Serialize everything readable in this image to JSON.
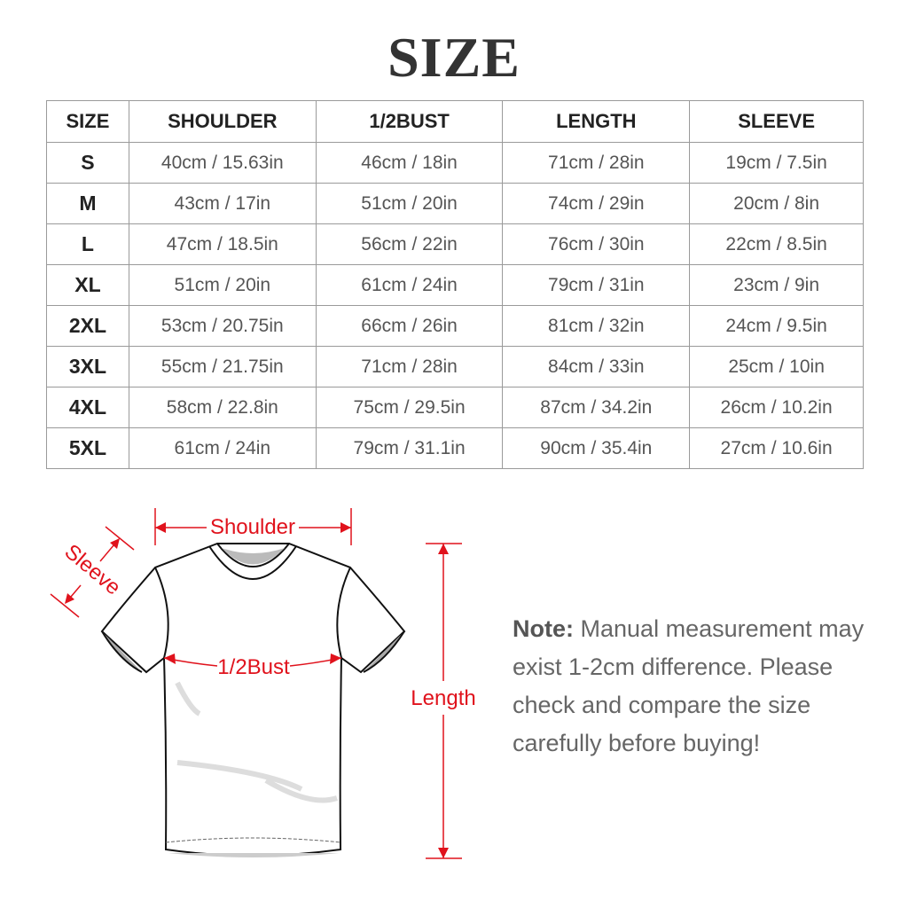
{
  "title": "SIZE",
  "table": {
    "headers": [
      "SIZE",
      "SHOULDER",
      "1/2BUST",
      "LENGTH",
      "SLEEVE"
    ],
    "rows": [
      [
        "S",
        "40cm / 15.63in",
        "46cm / 18in",
        "71cm / 28in",
        "19cm / 7.5in"
      ],
      [
        "M",
        "43cm / 17in",
        "51cm / 20in",
        "74cm / 29in",
        "20cm / 8in"
      ],
      [
        "L",
        "47cm / 18.5in",
        "56cm / 22in",
        "76cm / 30in",
        "22cm / 8.5in"
      ],
      [
        "XL",
        "51cm / 20in",
        "61cm / 24in",
        "79cm / 31in",
        "23cm / 9in"
      ],
      [
        "2XL",
        "53cm / 20.75in",
        "66cm / 26in",
        "81cm / 32in",
        "24cm / 9.5in"
      ],
      [
        "3XL",
        "55cm / 21.75in",
        "71cm / 28in",
        "84cm / 33in",
        "25cm / 10in"
      ],
      [
        "4XL",
        "58cm / 22.8in",
        "75cm / 29.5in",
        "87cm / 34.2in",
        "26cm / 10.2in"
      ],
      [
        "5XL",
        "61cm / 24in",
        "79cm / 31.1in",
        "90cm / 35.4in",
        "27cm / 10.6in"
      ]
    ]
  },
  "diagram": {
    "shoulder": "Shoulder",
    "sleeve": "Sleeve",
    "bust": "1/2Bust",
    "length": "Length",
    "accent": "#e0121c"
  },
  "note": {
    "label": "Note:",
    "text": "Manual measurement may exist 1-2cm difference. Please check and compare the size carefully before buying!"
  }
}
